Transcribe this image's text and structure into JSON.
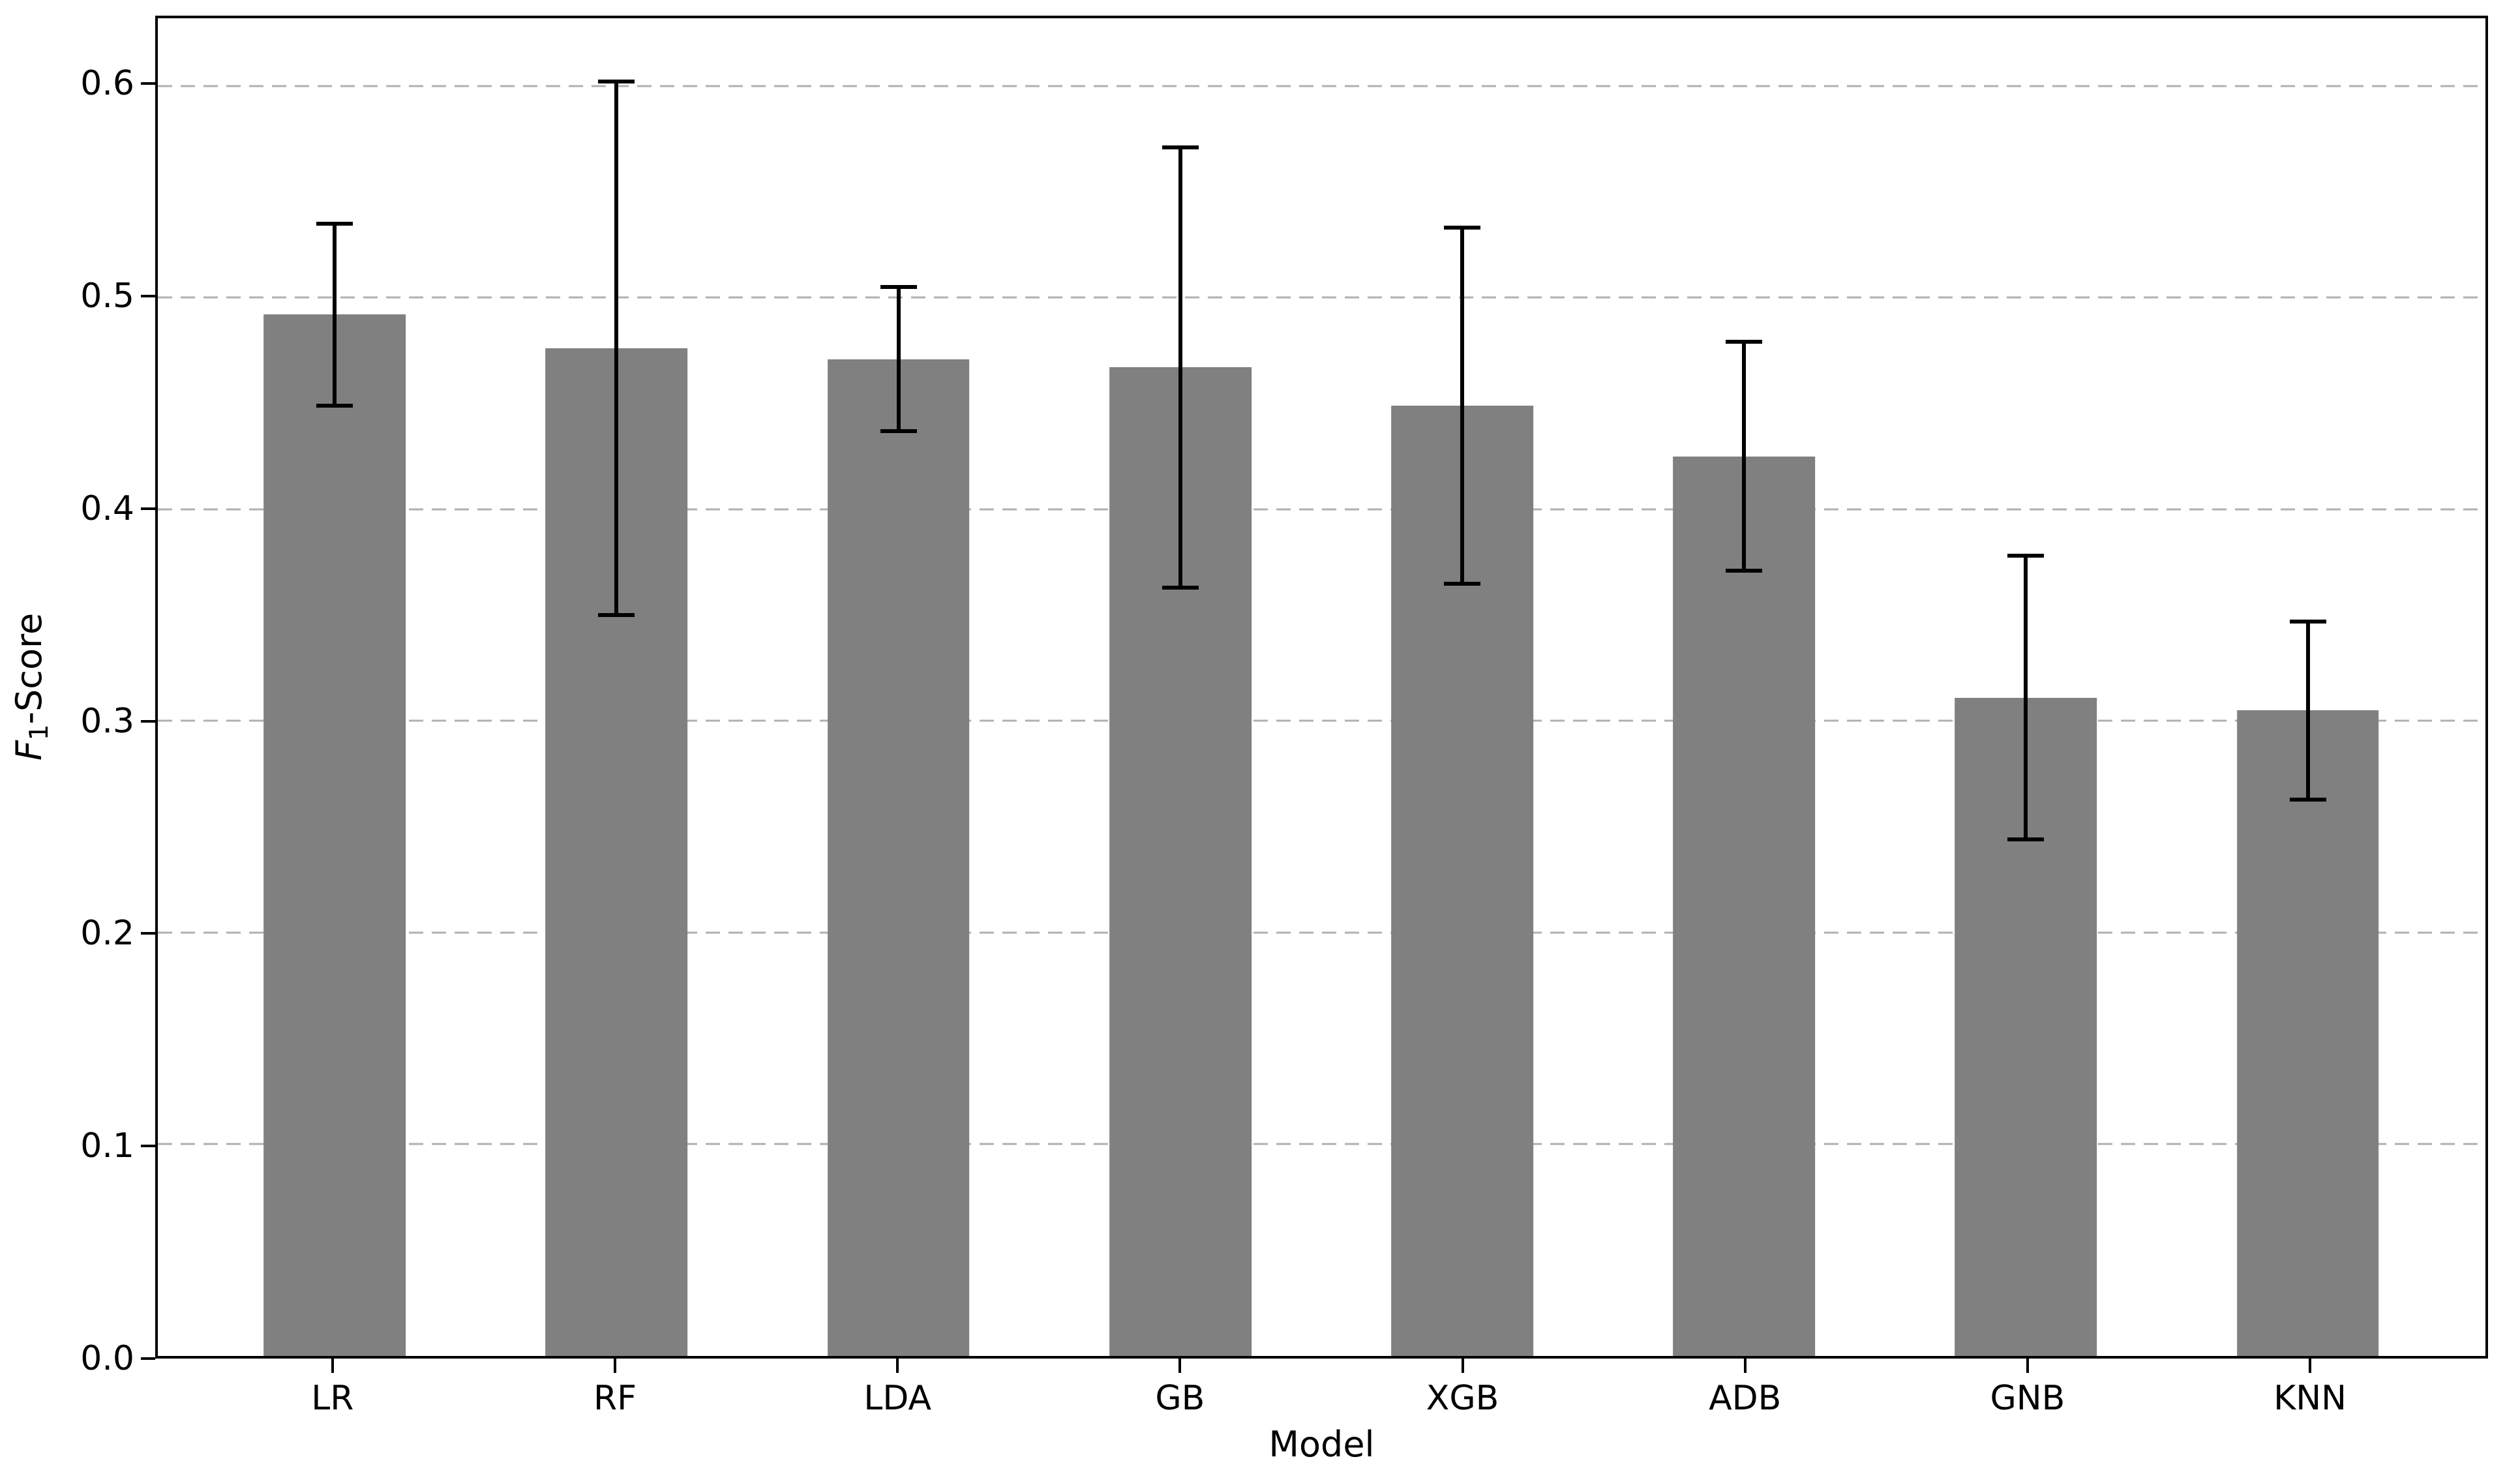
{
  "chart_data": {
    "type": "bar",
    "title": "",
    "xlabel": "Model",
    "ylabel_parts": {
      "italic": "F",
      "subscript": "1",
      "rest": "-Score"
    },
    "categories": [
      "LR",
      "RF",
      "LDA",
      "GB",
      "XGB",
      "ADB",
      "GNB",
      "KNN"
    ],
    "series": [
      {
        "name": "F1-Score mean",
        "values": [
          0.492,
          0.476,
          0.471,
          0.467,
          0.449,
          0.425,
          0.311,
          0.305
        ],
        "error_bars": [
          0.044,
          0.127,
          0.035,
          0.105,
          0.085,
          0.055,
          0.068,
          0.043
        ]
      }
    ],
    "error_bar_tops": [
      0.536,
      0.603,
      0.506,
      0.572,
      0.534,
      0.48,
      0.379,
      0.348
    ],
    "error_bar_bottoms": [
      0.448,
      0.349,
      0.436,
      0.362,
      0.364,
      0.37,
      0.243,
      0.262
    ],
    "yticks": [
      0.0,
      0.1,
      0.2,
      0.3,
      0.4,
      0.5,
      0.6
    ],
    "ytick_labels": [
      "0.0",
      "0.1",
      "0.2",
      "0.3",
      "0.4",
      "0.5",
      "0.6"
    ],
    "ylim": [
      0,
      0.632
    ],
    "xlim_note": "categorical axis, 8 bars",
    "grid": "horizontal dashed gridlines at each y tick",
    "legend": "none",
    "colors": {
      "bar": "#808080",
      "error_bar": "#000000",
      "grid": "#b0b0b0",
      "spine": "#000000",
      "text": "#000000",
      "background": "#ffffff"
    }
  }
}
